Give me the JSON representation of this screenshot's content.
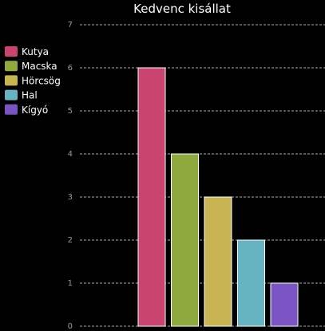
{
  "chart_data": {
    "type": "bar",
    "title": "Kedvenc kisállat",
    "xlabel": "",
    "ylabel": "",
    "ylim": [
      0,
      7
    ],
    "yticks": [
      0,
      1,
      2,
      3,
      4,
      5,
      6,
      7
    ],
    "grid": true,
    "legend_position": "left",
    "categories": [
      "Kutya",
      "Macska",
      "Hörcsög",
      "Hal",
      "Kígyó"
    ],
    "values": [
      6,
      4,
      3,
      2,
      1
    ],
    "colors": [
      "#c9456f",
      "#8eaa3e",
      "#c8b451",
      "#66b4c2",
      "#7a54c2"
    ]
  }
}
